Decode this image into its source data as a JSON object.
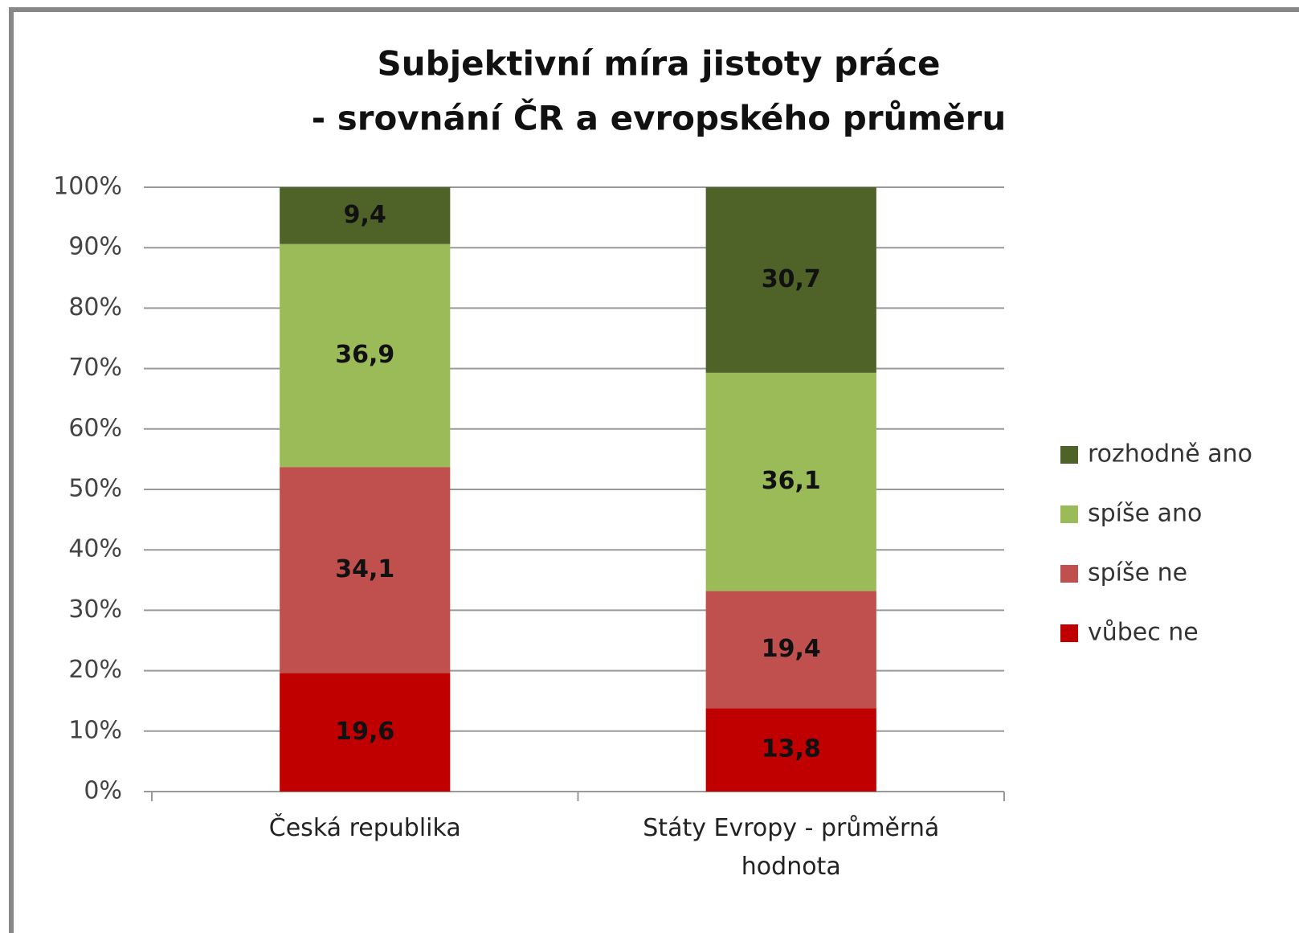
{
  "chart_data": {
    "type": "stacked-bar",
    "title": [
      "Subjektivní míra jistoty práce",
      "- srovnání ČR a evropského průměru"
    ],
    "categories": [
      "Česká republika",
      "Státy Evropy - průměrná hodnota"
    ],
    "series": [
      {
        "name": "vůbec ne",
        "color": "#c00000",
        "values": [
          19.6,
          13.8
        ],
        "value_labels": [
          "19,6",
          "13,8"
        ]
      },
      {
        "name": "spíše ne",
        "color": "#c0504d",
        "values": [
          34.1,
          19.4
        ],
        "value_labels": [
          "34,1",
          "19,4"
        ]
      },
      {
        "name": "spíše ano",
        "color": "#9bbb59",
        "values": [
          36.9,
          36.1
        ],
        "value_labels": [
          "36,9",
          "36,1"
        ]
      },
      {
        "name": "rozhodně ano",
        "color": "#4f6228",
        "values": [
          9.4,
          30.7
        ],
        "value_labels": [
          "9,4",
          "30,7"
        ]
      }
    ],
    "ylim": [
      0,
      100
    ],
    "yticks": [
      {
        "value": 0,
        "label": "0%"
      },
      {
        "value": 10,
        "label": "10%"
      },
      {
        "value": 20,
        "label": "20%"
      },
      {
        "value": 30,
        "label": "30%"
      },
      {
        "value": 40,
        "label": "40%"
      },
      {
        "value": 50,
        "label": "50%"
      },
      {
        "value": 60,
        "label": "60%"
      },
      {
        "value": 70,
        "label": "70%"
      },
      {
        "value": 80,
        "label": "80%"
      },
      {
        "value": 90,
        "label": "90%"
      },
      {
        "value": 100,
        "label": "100%"
      }
    ],
    "grid": true,
    "legend": "right"
  }
}
